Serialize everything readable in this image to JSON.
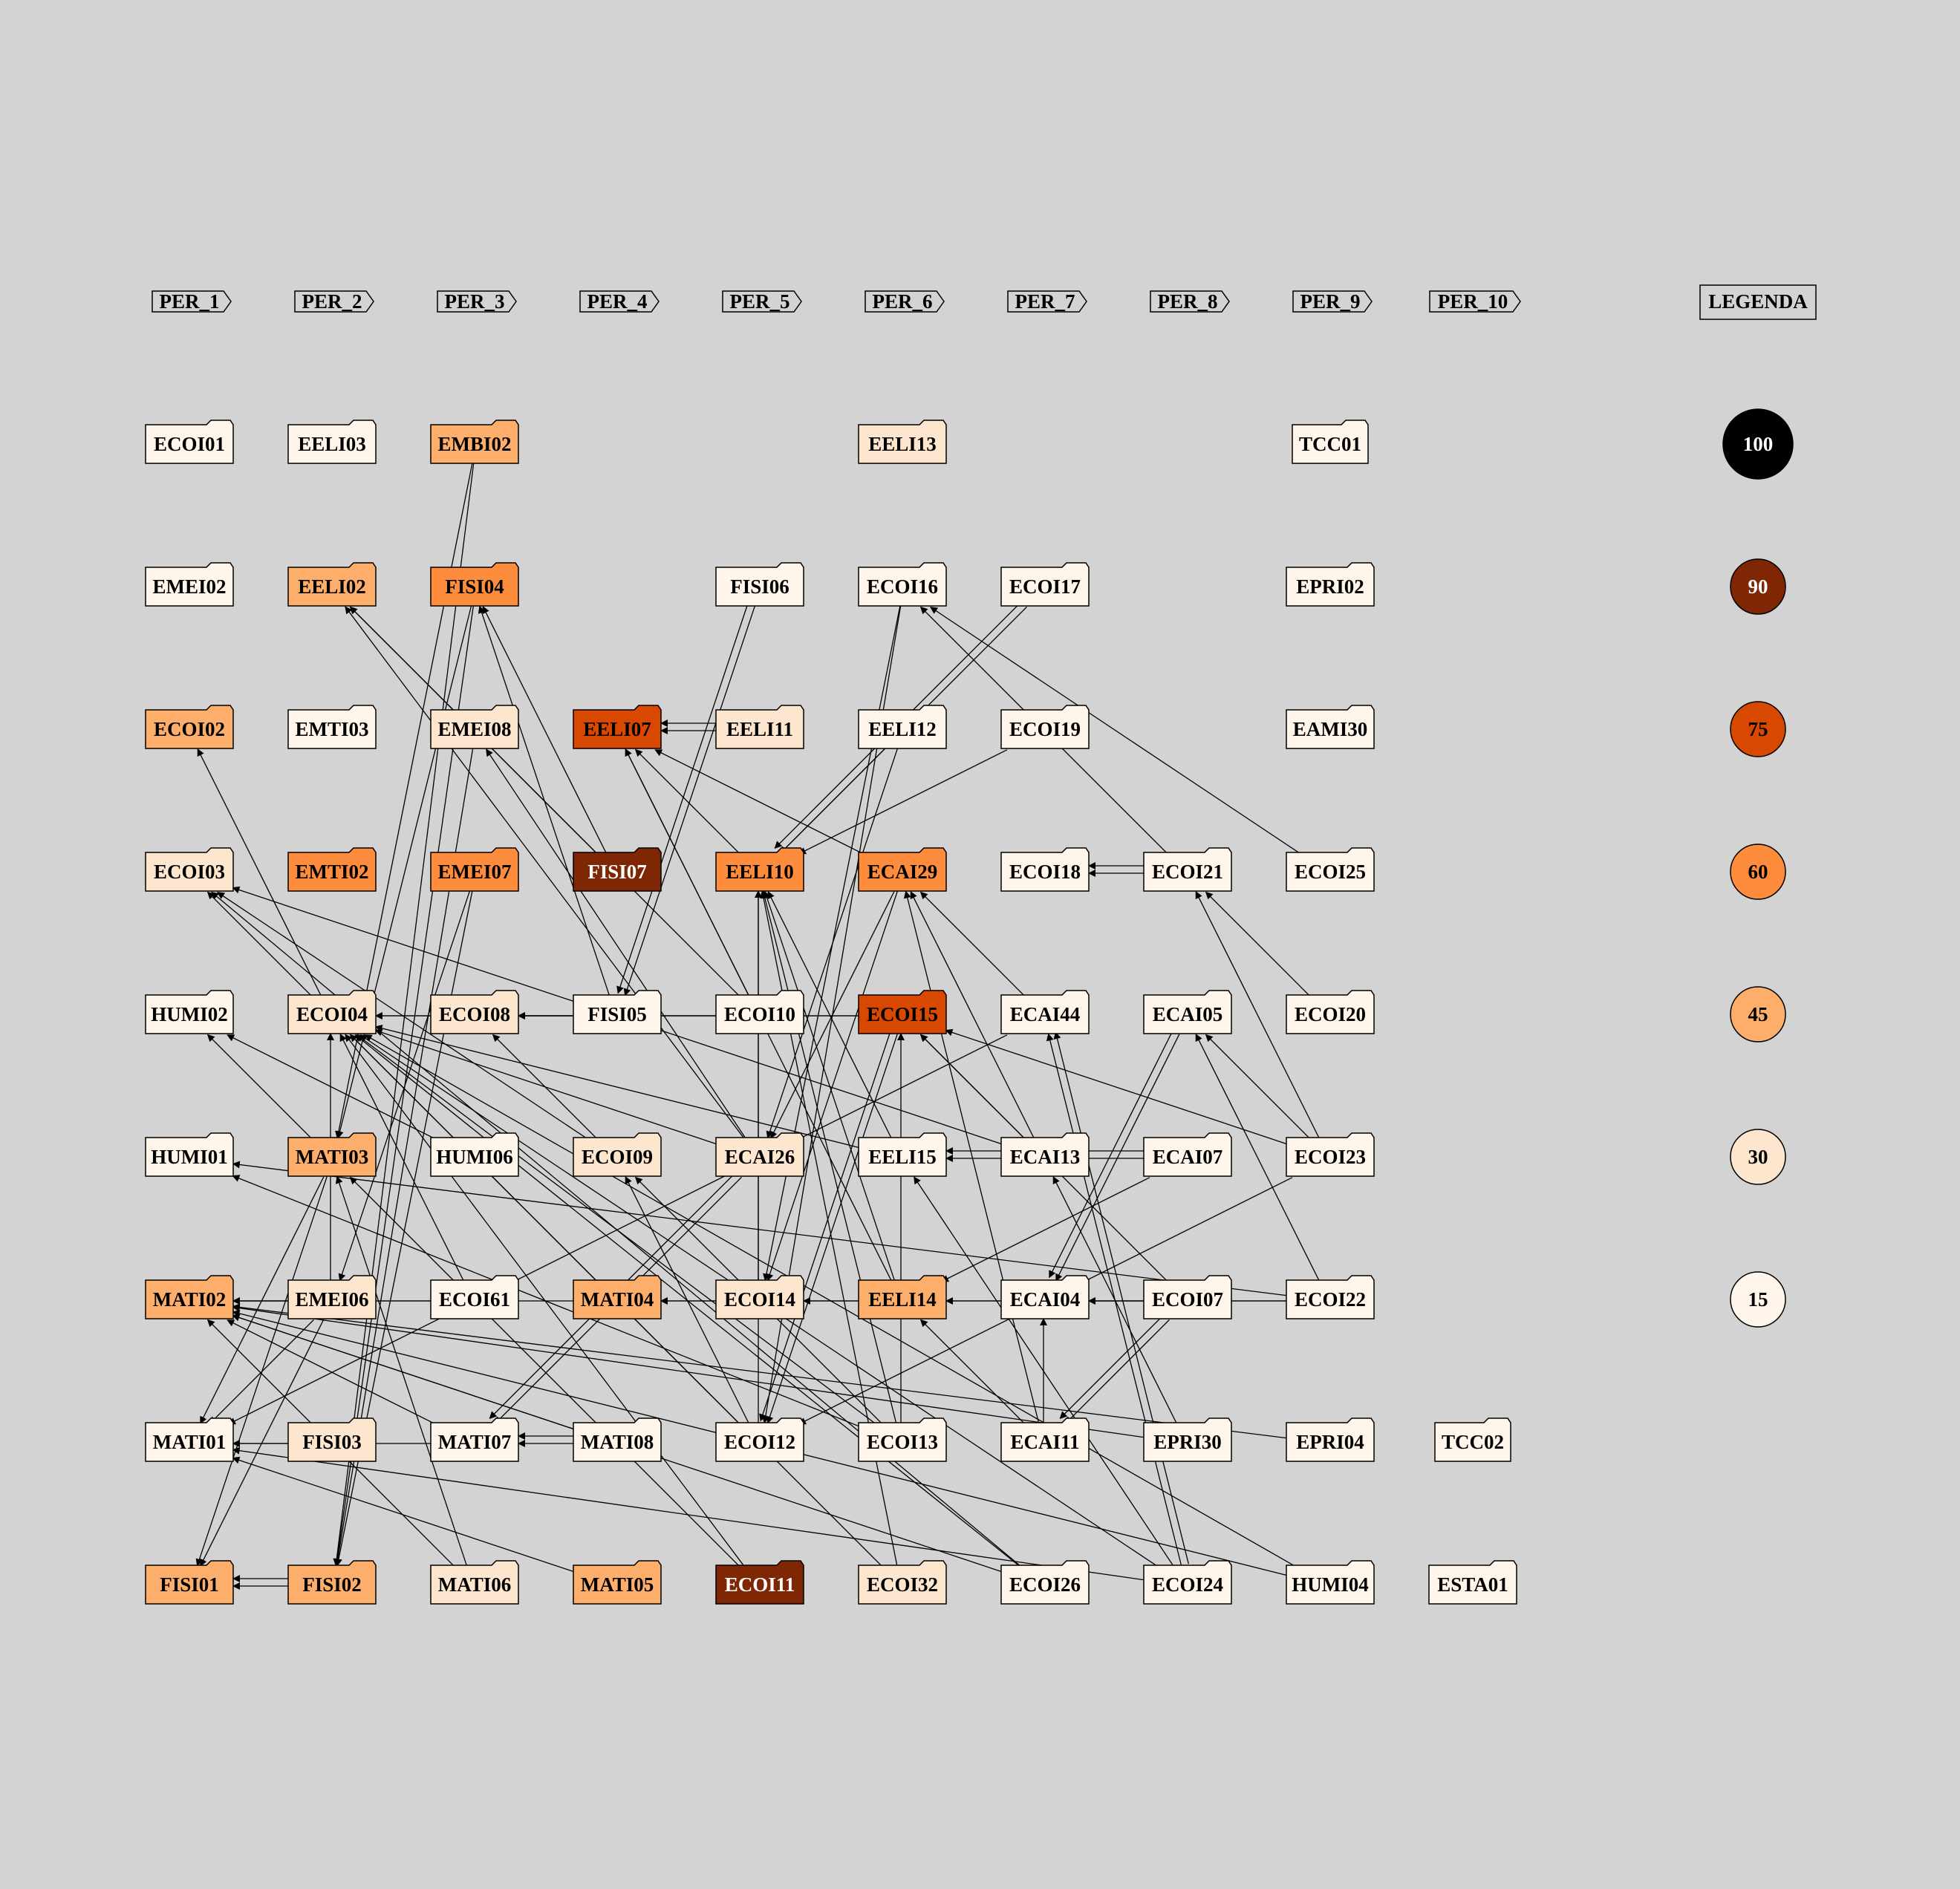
{
  "periods": [
    "PER_1",
    "PER_2",
    "PER_3",
    "PER_4",
    "PER_5",
    "PER_6",
    "PER_7",
    "PER_8",
    "PER_9",
    "PER_10"
  ],
  "legend": {
    "title": "LEGENDA",
    "items": [
      {
        "label": "100",
        "fill": "#000000",
        "text": "#ffffff"
      },
      {
        "label": "90",
        "fill": "#7f2704",
        "text": "#ffffff"
      },
      {
        "label": "75",
        "fill": "#d94801",
        "text": "#000000"
      },
      {
        "label": "60",
        "fill": "#fd8d3c",
        "text": "#000000"
      },
      {
        "label": "45",
        "fill": "#fdae6b",
        "text": "#000000"
      },
      {
        "label": "30",
        "fill": "#fee6ce",
        "text": "#000000"
      },
      {
        "label": "15",
        "fill": "#fff5eb",
        "text": "#000000"
      }
    ]
  },
  "courses": [
    {
      "id": "ECOI01",
      "fill": "#fff5eb"
    },
    {
      "id": "EELI03",
      "fill": "#fff5eb"
    },
    {
      "id": "EMBI02",
      "fill": "#fdae6b"
    },
    {
      "id": "EELI13",
      "fill": "#fee6ce"
    },
    {
      "id": "TCC01",
      "fill": "#fff5eb"
    },
    {
      "id": "EMEI02",
      "fill": "#fff5eb"
    },
    {
      "id": "EELI02",
      "fill": "#fdae6b"
    },
    {
      "id": "FISI04",
      "fill": "#fd8d3c"
    },
    {
      "id": "FISI06",
      "fill": "#fff5eb"
    },
    {
      "id": "ECOI16",
      "fill": "#fff5eb"
    },
    {
      "id": "ECOI17",
      "fill": "#fff5eb"
    },
    {
      "id": "EPRI02",
      "fill": "#fff5eb"
    },
    {
      "id": "ECOI02",
      "fill": "#fdae6b"
    },
    {
      "id": "EMTI03",
      "fill": "#fff5eb"
    },
    {
      "id": "EMEI08",
      "fill": "#fee6ce"
    },
    {
      "id": "EELI07",
      "fill": "#d94801"
    },
    {
      "id": "EELI11",
      "fill": "#fee6ce"
    },
    {
      "id": "EELI12",
      "fill": "#fff5eb"
    },
    {
      "id": "ECOI19",
      "fill": "#fff5eb"
    },
    {
      "id": "EAMI30",
      "fill": "#fff5eb"
    },
    {
      "id": "ECOI03",
      "fill": "#fee6ce"
    },
    {
      "id": "EMTI02",
      "fill": "#fd8d3c"
    },
    {
      "id": "EMEI07",
      "fill": "#fd8d3c"
    },
    {
      "id": "FISI07",
      "fill": "#7f2704",
      "text": "#ffffff"
    },
    {
      "id": "EELI10",
      "fill": "#fd8d3c"
    },
    {
      "id": "ECAI29",
      "fill": "#fd8d3c"
    },
    {
      "id": "ECOI18",
      "fill": "#fff5eb"
    },
    {
      "id": "ECOI21",
      "fill": "#fff5eb"
    },
    {
      "id": "ECOI25",
      "fill": "#fff5eb"
    },
    {
      "id": "HUMI02",
      "fill": "#fff5eb"
    },
    {
      "id": "ECOI04",
      "fill": "#fee6ce"
    },
    {
      "id": "ECOI08",
      "fill": "#fee6ce"
    },
    {
      "id": "FISI05",
      "fill": "#fff5eb"
    },
    {
      "id": "ECOI10",
      "fill": "#fff5eb"
    },
    {
      "id": "ECOI15",
      "fill": "#d94801"
    },
    {
      "id": "ECAI44",
      "fill": "#fff5eb"
    },
    {
      "id": "ECAI05",
      "fill": "#fff5eb"
    },
    {
      "id": "ECOI20",
      "fill": "#fff5eb"
    },
    {
      "id": "HUMI01",
      "fill": "#fff5eb"
    },
    {
      "id": "MATI03",
      "fill": "#fdae6b"
    },
    {
      "id": "HUMI06",
      "fill": "#fff5eb"
    },
    {
      "id": "ECOI09",
      "fill": "#fee6ce"
    },
    {
      "id": "ECAI26",
      "fill": "#fee6ce"
    },
    {
      "id": "EELI15",
      "fill": "#fff5eb"
    },
    {
      "id": "ECAI13",
      "fill": "#fff5eb"
    },
    {
      "id": "ECAI07",
      "fill": "#fff5eb"
    },
    {
      "id": "ECOI23",
      "fill": "#fff5eb"
    },
    {
      "id": "MATI02",
      "fill": "#fdae6b"
    },
    {
      "id": "EMEI06",
      "fill": "#fee6ce"
    },
    {
      "id": "ECOI61",
      "fill": "#fff5eb"
    },
    {
      "id": "MATI04",
      "fill": "#fdae6b"
    },
    {
      "id": "ECOI14",
      "fill": "#fee6ce"
    },
    {
      "id": "EELI14",
      "fill": "#fdae6b"
    },
    {
      "id": "ECAI04",
      "fill": "#fff5eb"
    },
    {
      "id": "ECOI07",
      "fill": "#fff5eb"
    },
    {
      "id": "ECOI22",
      "fill": "#fff5eb"
    },
    {
      "id": "MATI01",
      "fill": "#fff5eb"
    },
    {
      "id": "FISI03",
      "fill": "#fee6ce"
    },
    {
      "id": "MATI07",
      "fill": "#fff5eb"
    },
    {
      "id": "MATI08",
      "fill": "#fff5eb"
    },
    {
      "id": "ECOI12",
      "fill": "#fff5eb"
    },
    {
      "id": "ECOI13",
      "fill": "#fff5eb"
    },
    {
      "id": "ECAI11",
      "fill": "#fff5eb"
    },
    {
      "id": "EPRI30",
      "fill": "#fff5eb"
    },
    {
      "id": "EPRI04",
      "fill": "#fff5eb"
    },
    {
      "id": "TCC02",
      "fill": "#fff5eb"
    },
    {
      "id": "FISI01",
      "fill": "#fdae6b"
    },
    {
      "id": "FISI02",
      "fill": "#fdae6b"
    },
    {
      "id": "MATI06",
      "fill": "#fee6ce"
    },
    {
      "id": "MATI05",
      "fill": "#fdae6b"
    },
    {
      "id": "ECOI11",
      "fill": "#7f2704",
      "text": "#ffffff"
    },
    {
      "id": "ECOI32",
      "fill": "#fee6ce"
    },
    {
      "id": "ECOI26",
      "fill": "#fff5eb"
    },
    {
      "id": "ECOI24",
      "fill": "#fff5eb"
    },
    {
      "id": "HUMI04",
      "fill": "#fff5eb"
    },
    {
      "id": "ESTA01",
      "fill": "#fff5eb"
    }
  ],
  "prerequisites": [
    [
      "FISI02",
      "FISI01"
    ],
    [
      "FISI02",
      "FISI01"
    ],
    [
      "FISI03",
      "MATI01"
    ],
    [
      "MATI07",
      "MATI01"
    ],
    [
      "MATI08",
      "MATI07"
    ],
    [
      "MATI08",
      "MATI07"
    ],
    [
      "MATI06",
      "MATI02"
    ],
    [
      "MATI05",
      "MATI01"
    ],
    [
      "MATI06",
      "MATI03"
    ],
    [
      "EMEI06",
      "MATI02"
    ],
    [
      "ECOI61",
      "MATI02"
    ],
    [
      "MATI04",
      "MATI02"
    ],
    [
      "ECOI14",
      "MATI04"
    ],
    [
      "EELI14",
      "MATI04"
    ],
    [
      "ECAI04",
      "EELI14"
    ],
    [
      "ECOI07",
      "ECAI04"
    ],
    [
      "ECOI22",
      "ECAI04"
    ],
    [
      "ECOI22",
      "ECOI14"
    ],
    [
      "MATI03",
      "MATI01"
    ],
    [
      "MATI03",
      "FISI01"
    ],
    [
      "EMEI06",
      "FISI01"
    ],
    [
      "EMEI06",
      "MATI01"
    ],
    [
      "EMBI02",
      "FISI02"
    ],
    [
      "EMBI02",
      "MATI03"
    ],
    [
      "FISI04",
      "FISI02"
    ],
    [
      "FISI04",
      "MATI03"
    ],
    [
      "EMEI07",
      "FISI02"
    ],
    [
      "EMEI08",
      "FISI02"
    ],
    [
      "EMEI07",
      "EMEI06"
    ],
    [
      "ECOI04",
      "ECOI02"
    ],
    [
      "ECOI04",
      "ECOI03"
    ],
    [
      "ECOI08",
      "ECOI04"
    ],
    [
      "FISI05",
      "ECOI08"
    ],
    [
      "ECOI10",
      "ECOI08"
    ],
    [
      "ECOI15",
      "ECOI08"
    ],
    [
      "ECOI15",
      "ECOI04"
    ],
    [
      "MATI03",
      "HUMI02"
    ],
    [
      "HUMI06",
      "HUMI02"
    ],
    [
      "ECOI09",
      "ECOI08"
    ],
    [
      "ECOI09",
      "ECOI03"
    ],
    [
      "ECAI26",
      "ECOI04"
    ],
    [
      "EELI15",
      "ECOI04"
    ],
    [
      "ECAI13",
      "ECOI03"
    ],
    [
      "FISI07",
      "EELI02"
    ],
    [
      "FISI07",
      "FISI04"
    ],
    [
      "FISI05",
      "FISI04"
    ],
    [
      "ECOI10",
      "EELI02"
    ],
    [
      "ECAI26",
      "EELI02"
    ],
    [
      "ECAI26",
      "EMEI08"
    ],
    [
      "EELI11",
      "EELI07"
    ],
    [
      "EELI11",
      "EELI07"
    ],
    [
      "EELI10",
      "EELI07"
    ],
    [
      "ECAI29",
      "EELI07"
    ],
    [
      "EELI14",
      "EELI07"
    ],
    [
      "ECOI10",
      "EELI07"
    ],
    [
      "FISI06",
      "FISI05"
    ],
    [
      "FISI06",
      "FISI05"
    ],
    [
      "ECOI16",
      "ECOI14"
    ],
    [
      "ECOI16",
      "ECOI12"
    ],
    [
      "ECOI17",
      "EELI10"
    ],
    [
      "ECOI17",
      "EELI10"
    ],
    [
      "EELI12",
      "EELI10"
    ],
    [
      "EELI12",
      "ECAI26"
    ],
    [
      "ECOI19",
      "EELI10"
    ],
    [
      "ECOI21",
      "ECOI18"
    ],
    [
      "ECOI21",
      "ECOI18"
    ],
    [
      "ECOI21",
      "ECOI16"
    ],
    [
      "ECOI25",
      "ECOI16"
    ],
    [
      "ECOI20",
      "ECOI21"
    ],
    [
      "ECOI23",
      "ECOI21"
    ],
    [
      "ECAI29",
      "ECAI26"
    ],
    [
      "ECAI29",
      "ECOI14"
    ],
    [
      "ECAI44",
      "ECAI29"
    ],
    [
      "ECAI05",
      "ECAI04"
    ],
    [
      "ECAI05",
      "ECAI04"
    ],
    [
      "ECAI13",
      "ECAI29"
    ],
    [
      "ECAI11",
      "ECAI29"
    ],
    [
      "ECAI07",
      "EELI15"
    ],
    [
      "ECAI07",
      "EELI15"
    ],
    [
      "ECOI23",
      "ECOI15"
    ],
    [
      "ECOI22",
      "ECAI05"
    ],
    [
      "ECOI23",
      "ECOI12"
    ],
    [
      "ECOI22",
      "HUMI01"
    ],
    [
      "ECAI26",
      "MATI07"
    ],
    [
      "ECAI26",
      "MATI07"
    ],
    [
      "ECOI14",
      "EELI10"
    ],
    [
      "EELI14",
      "EELI10"
    ],
    [
      "EELI15",
      "EELI10"
    ],
    [
      "ECOI13",
      "EELI10"
    ],
    [
      "ECOI13",
      "ECOI15"
    ],
    [
      "ECOI12",
      "EELI10"
    ],
    [
      "ECOI12",
      "ECOI09"
    ],
    [
      "ECOI13",
      "ECOI09"
    ],
    [
      "ECOI13",
      "ECOI04"
    ],
    [
      "ECOI26",
      "ECOI04"
    ],
    [
      "ECOI26",
      "ECOI03"
    ],
    [
      "ECOI24",
      "ECOI04"
    ],
    [
      "ECOI24",
      "EELI15"
    ],
    [
      "ECOI24",
      "ECAI44"
    ],
    [
      "ECOI24",
      "ECAI44"
    ],
    [
      "EPRI30",
      "ECAI13"
    ],
    [
      "EPRI30",
      "MATI02"
    ],
    [
      "EPRI04",
      "MATI02"
    ],
    [
      "HUMI04",
      "MATI02"
    ],
    [
      "HUMI04",
      "ECOI04"
    ],
    [
      "ECOI11",
      "MATI03"
    ],
    [
      "ECOI11",
      "ECOI04"
    ],
    [
      "ECOI32",
      "ECOI04"
    ],
    [
      "ECOI32",
      "EELI10"
    ],
    [
      "ECOI26",
      "MATI02"
    ],
    [
      "ECOI24",
      "MATI01"
    ],
    [
      "MATI08",
      "MATI02"
    ],
    [
      "MATI07",
      "MATI02"
    ],
    [
      "ECOI61",
      "ECOI04"
    ],
    [
      "EMEI06",
      "ECOI04"
    ],
    [
      "ECAI11",
      "EELI14"
    ],
    [
      "ECAI11",
      "ECAI04"
    ],
    [
      "ECOI07",
      "ECAI11"
    ],
    [
      "ECOI07",
      "ECAI11"
    ],
    [
      "ECAI44",
      "MATI01"
    ],
    [
      "ECOI07",
      "ECOI15"
    ],
    [
      "ECAI13",
      "ECOI15"
    ],
    [
      "ECOI15",
      "ECOI12"
    ],
    [
      "ECOI15",
      "ECOI12"
    ],
    [
      "ECAI07",
      "EELI14"
    ],
    [
      "ECOI12",
      "ECOI04"
    ],
    [
      "ECOI13",
      "HUMI01"
    ],
    [
      "ECOI23",
      "ECAI05"
    ]
  ]
}
